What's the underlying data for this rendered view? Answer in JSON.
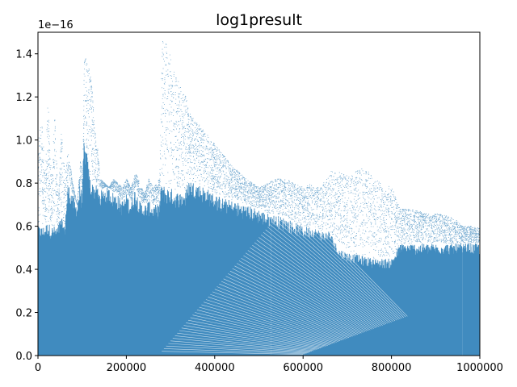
{
  "chart_data": {
    "type": "scatter",
    "title": "log1presult",
    "xlabel": "",
    "ylabel": "",
    "offset_label": "1e−16",
    "xlim": [
      0,
      1000000
    ],
    "ylim": [
      0,
      1.5
    ],
    "y_scale_factor": 1e-16,
    "x_ticks": [
      0,
      200000,
      400000,
      600000,
      800000,
      1000000
    ],
    "x_tick_labels": [
      "0",
      "200000",
      "400000",
      "600000",
      "800000",
      "1000000"
    ],
    "y_ticks": [
      0.0,
      0.2,
      0.4,
      0.6,
      0.8,
      1.0,
      1.2,
      1.4
    ],
    "y_tick_labels": [
      "0.0",
      "0.2",
      "0.4",
      "0.6",
      "0.8",
      "1.0",
      "1.2",
      "1.4"
    ],
    "grid": false,
    "legend": "none",
    "marker_color": "#1f77b4",
    "series": [
      {
        "envelope": {
          "x": [
            0,
            8000,
            15000,
            22000,
            30000,
            38000,
            45000,
            52000,
            60000,
            68000,
            78000,
            88000,
            95000,
            100000,
            104000,
            110000,
            120000,
            128000,
            135000,
            140000,
            150000,
            160000,
            170000,
            180000,
            190000,
            200000,
            210000,
            220000,
            230000,
            240000,
            250000,
            260000,
            270000,
            275000,
            280000,
            290000,
            300000,
            310000,
            320000,
            335000,
            340000,
            360000,
            380000,
            400000,
            420000,
            440000,
            470000,
            500000,
            520000,
            540000,
            560000,
            580000,
            600000,
            620000,
            640000,
            660000,
            680000,
            700000,
            720000,
            740000,
            760000,
            780000,
            800000,
            820000,
            840000,
            860000,
            880000,
            900000,
            920000,
            940000,
            960000,
            980000,
            1000000
          ],
          "y_upper": [
            1.0,
            1.1,
            0.85,
            1.2,
            0.8,
            1.15,
            0.7,
            1.05,
            0.85,
            0.95,
            0.8,
            0.7,
            0.9,
            0.85,
            1.42,
            1.38,
            1.3,
            1.05,
            0.95,
            0.82,
            0.8,
            0.78,
            0.82,
            0.8,
            0.78,
            0.82,
            0.78,
            0.85,
            0.8,
            0.75,
            0.82,
            0.78,
            0.8,
            0.85,
            1.47,
            1.45,
            1.38,
            1.32,
            1.25,
            1.2,
            1.13,
            1.08,
            1.03,
            0.98,
            0.93,
            0.88,
            0.82,
            0.78,
            0.8,
            0.82,
            0.82,
            0.8,
            0.78,
            0.8,
            0.78,
            0.86,
            0.85,
            0.84,
            0.86,
            0.87,
            0.82,
            0.8,
            0.78,
            0.68,
            0.68,
            0.67,
            0.66,
            0.66,
            0.65,
            0.64,
            0.6,
            0.6,
            0.59
          ],
          "y_dense_top": [
            0.6,
            0.6,
            0.6,
            0.62,
            0.6,
            0.6,
            0.6,
            0.65,
            0.6,
            0.8,
            0.75,
            0.7,
            0.8,
            0.75,
            1.0,
            0.95,
            0.8,
            0.8,
            0.78,
            0.76,
            0.78,
            0.78,
            0.76,
            0.75,
            0.72,
            0.75,
            0.72,
            0.78,
            0.72,
            0.7,
            0.72,
            0.7,
            0.7,
            0.72,
            0.8,
            0.78,
            0.78,
            0.76,
            0.76,
            0.76,
            0.82,
            0.8,
            0.78,
            0.75,
            0.73,
            0.72,
            0.7,
            0.68,
            0.66,
            0.65,
            0.64,
            0.62,
            0.6,
            0.6,
            0.58,
            0.58,
            0.5,
            0.48,
            0.47,
            0.46,
            0.45,
            0.45,
            0.45,
            0.52,
            0.52,
            0.52,
            0.52,
            0.52,
            0.52,
            0.52,
            0.52,
            0.52,
            0.52
          ]
        }
      }
    ]
  }
}
